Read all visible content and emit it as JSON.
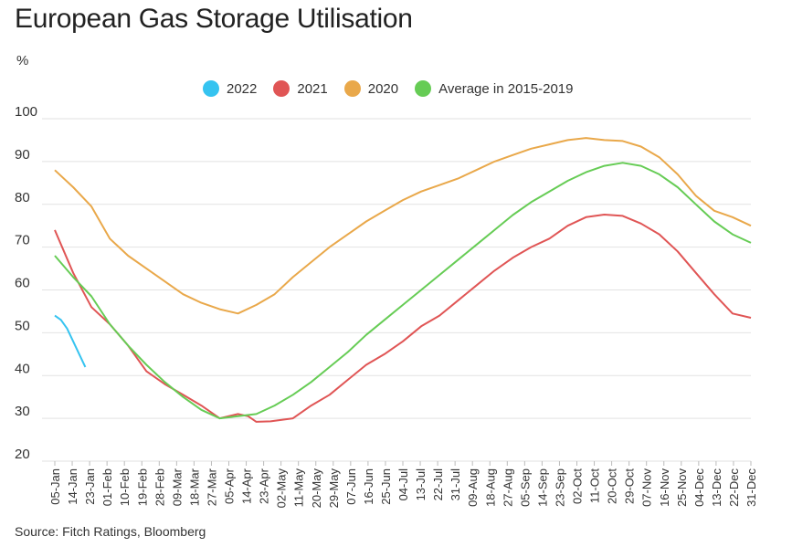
{
  "title": "European Gas Storage Utilisation",
  "unit": "%",
  "source": "Source: Fitch Ratings, Bloomberg",
  "legend": [
    {
      "label": "2022",
      "color": "#35c3f0"
    },
    {
      "label": "2021",
      "color": "#e05555"
    },
    {
      "label": "2020",
      "color": "#e9a84a"
    },
    {
      "label": "Average in 2015-2019",
      "color": "#66cc55"
    }
  ],
  "chart_data": {
    "type": "line",
    "ylim": [
      20,
      100
    ],
    "yticks": [
      "100",
      "90",
      "80",
      "70",
      "60",
      "50",
      "40",
      "30",
      "20"
    ],
    "xticks": [
      "05-Jan",
      "14-Jan",
      "23-Jan",
      "01-Feb",
      "10-Feb",
      "19-Feb",
      "28-Feb",
      "09-Mar",
      "18-Mar",
      "27-Mar",
      "05-Apr",
      "14-Apr",
      "23-Apr",
      "02-May",
      "11-May",
      "20-May",
      "29-May",
      "07-Jun",
      "16-Jun",
      "25-Jun",
      "04-Jul",
      "13-Jul",
      "22-Jul",
      "31-Jul",
      "09-Aug",
      "18-Aug",
      "27-Aug",
      "05-Sep",
      "14-Sep",
      "23-Sep",
      "02-Oct",
      "11-Oct",
      "20-Oct",
      "29-Oct",
      "07-Nov",
      "16-Nov",
      "25-Nov",
      "04-Dec",
      "13-Dec",
      "22-Dec",
      "31-Dec"
    ],
    "grid": true,
    "legend_position": "top",
    "series": [
      {
        "name": "2022",
        "color": "#35c3f0",
        "points": [
          [
            0,
            54
          ],
          [
            3,
            53
          ],
          [
            6,
            51
          ],
          [
            9,
            48
          ],
          [
            12,
            45
          ],
          [
            15,
            42
          ]
        ]
      },
      {
        "name": "2021",
        "color": "#e05555",
        "points": [
          [
            0,
            74
          ],
          [
            9,
            64
          ],
          [
            18,
            56
          ],
          [
            27,
            52
          ],
          [
            36,
            47
          ],
          [
            45,
            41
          ],
          [
            54,
            38
          ],
          [
            63,
            35.5
          ],
          [
            72,
            33
          ],
          [
            81,
            30
          ],
          [
            90,
            31
          ],
          [
            95,
            30.5
          ],
          [
            99,
            29.2
          ],
          [
            106,
            29.3
          ],
          [
            117,
            30
          ],
          [
            126,
            33
          ],
          [
            135,
            35.5
          ],
          [
            144,
            39
          ],
          [
            153,
            42.5
          ],
          [
            162,
            45
          ],
          [
            171,
            48
          ],
          [
            180,
            51.5
          ],
          [
            189,
            54
          ],
          [
            198,
            57.5
          ],
          [
            207,
            61
          ],
          [
            216,
            64.5
          ],
          [
            225,
            67.5
          ],
          [
            234,
            70
          ],
          [
            243,
            72
          ],
          [
            252,
            75
          ],
          [
            261,
            77
          ],
          [
            270,
            77.6
          ],
          [
            279,
            77.3
          ],
          [
            288,
            75.5
          ],
          [
            297,
            73
          ],
          [
            306,
            69
          ],
          [
            315,
            64
          ],
          [
            324,
            59
          ],
          [
            333,
            54.5
          ],
          [
            342,
            53.5
          ]
        ]
      },
      {
        "name": "2020",
        "color": "#e9a84a",
        "points": [
          [
            0,
            88
          ],
          [
            9,
            84
          ],
          [
            18,
            79.5
          ],
          [
            27,
            72
          ],
          [
            36,
            68
          ],
          [
            45,
            65
          ],
          [
            54,
            62
          ],
          [
            63,
            59
          ],
          [
            72,
            57
          ],
          [
            81,
            55.5
          ],
          [
            90,
            54.5
          ],
          [
            99,
            56.5
          ],
          [
            108,
            59
          ],
          [
            117,
            63
          ],
          [
            126,
            66.5
          ],
          [
            135,
            70
          ],
          [
            144,
            73
          ],
          [
            153,
            76
          ],
          [
            162,
            78.5
          ],
          [
            171,
            81
          ],
          [
            180,
            83
          ],
          [
            189,
            84.5
          ],
          [
            198,
            86
          ],
          [
            207,
            88
          ],
          [
            216,
            90
          ],
          [
            225,
            91.5
          ],
          [
            234,
            93
          ],
          [
            243,
            94
          ],
          [
            252,
            95
          ],
          [
            261,
            95.5
          ],
          [
            270,
            95
          ],
          [
            279,
            94.8
          ],
          [
            288,
            93.5
          ],
          [
            297,
            91
          ],
          [
            306,
            87
          ],
          [
            315,
            82
          ],
          [
            324,
            78.5
          ],
          [
            333,
            77
          ],
          [
            342,
            75
          ]
        ]
      },
      {
        "name": "Average in 2015-2019",
        "color": "#66cc55",
        "points": [
          [
            0,
            68
          ],
          [
            9,
            63
          ],
          [
            18,
            58.5
          ],
          [
            27,
            52
          ],
          [
            36,
            47
          ],
          [
            45,
            42.5
          ],
          [
            54,
            38.5
          ],
          [
            63,
            35
          ],
          [
            72,
            32
          ],
          [
            81,
            30
          ],
          [
            90,
            30.5
          ],
          [
            99,
            31
          ],
          [
            108,
            33
          ],
          [
            117,
            35.5
          ],
          [
            126,
            38.5
          ],
          [
            135,
            42
          ],
          [
            144,
            45.5
          ],
          [
            153,
            49.5
          ],
          [
            162,
            53
          ],
          [
            171,
            56.5
          ],
          [
            180,
            60
          ],
          [
            189,
            63.5
          ],
          [
            198,
            67
          ],
          [
            207,
            70.5
          ],
          [
            216,
            74
          ],
          [
            225,
            77.5
          ],
          [
            234,
            80.5
          ],
          [
            243,
            83
          ],
          [
            252,
            85.5
          ],
          [
            261,
            87.5
          ],
          [
            270,
            89
          ],
          [
            279,
            89.7
          ],
          [
            288,
            89
          ],
          [
            297,
            87
          ],
          [
            306,
            84
          ],
          [
            315,
            80
          ],
          [
            324,
            76
          ],
          [
            333,
            73
          ],
          [
            342,
            71
          ]
        ]
      }
    ]
  }
}
